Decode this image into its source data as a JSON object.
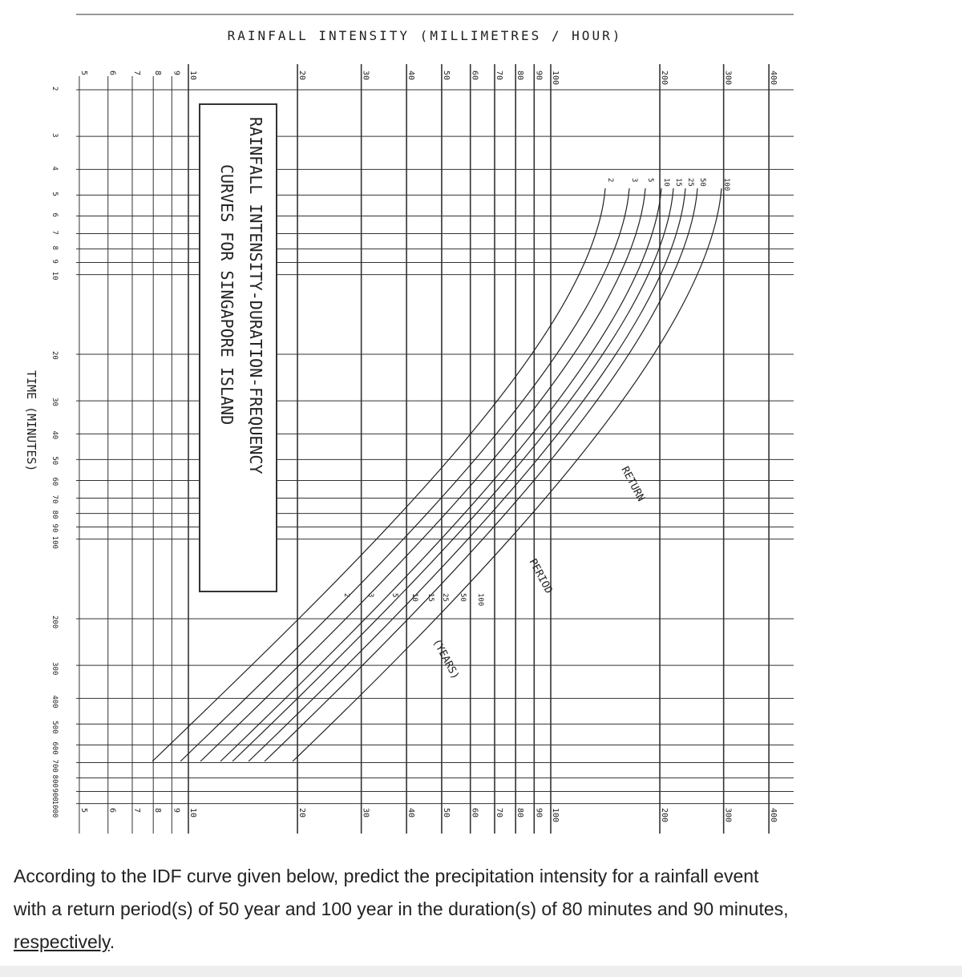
{
  "figure": {
    "title": "RAINFALL INTENSITY (MILLIMETRES / HOUR)",
    "time_axis_label": "TIME (MINUTES)",
    "box_title": [
      "RAINFALL INTENSITY-DURATION-FREQUENCY",
      "CURVES FOR SINGAPORE ISLAND"
    ],
    "intensity_ticks": [
      5,
      6,
      7,
      8,
      9,
      10,
      20,
      30,
      40,
      50,
      60,
      70,
      80,
      90,
      100,
      200,
      300,
      400
    ],
    "time_ticks": [
      2,
      3,
      4,
      5,
      6,
      7,
      8,
      9,
      10,
      20,
      30,
      40,
      50,
      60,
      70,
      80,
      90,
      100,
      200,
      300,
      400,
      500,
      600,
      700,
      800,
      900,
      1000
    ],
    "return_periods": [
      2,
      3,
      5,
      10,
      15,
      25,
      50,
      100
    ],
    "annotations": [
      "RETURN",
      "PERIOD",
      "(YEARS)"
    ]
  },
  "question": {
    "lines": [
      "According to the IDF curve given below, predict the precipitation intensity for a rainfall event",
      "with a return period(s) of 50 year and 100 year in the duration(s) of 80 minutes and 90 minutes,"
    ],
    "underlined": "respectively",
    "end": "."
  }
}
